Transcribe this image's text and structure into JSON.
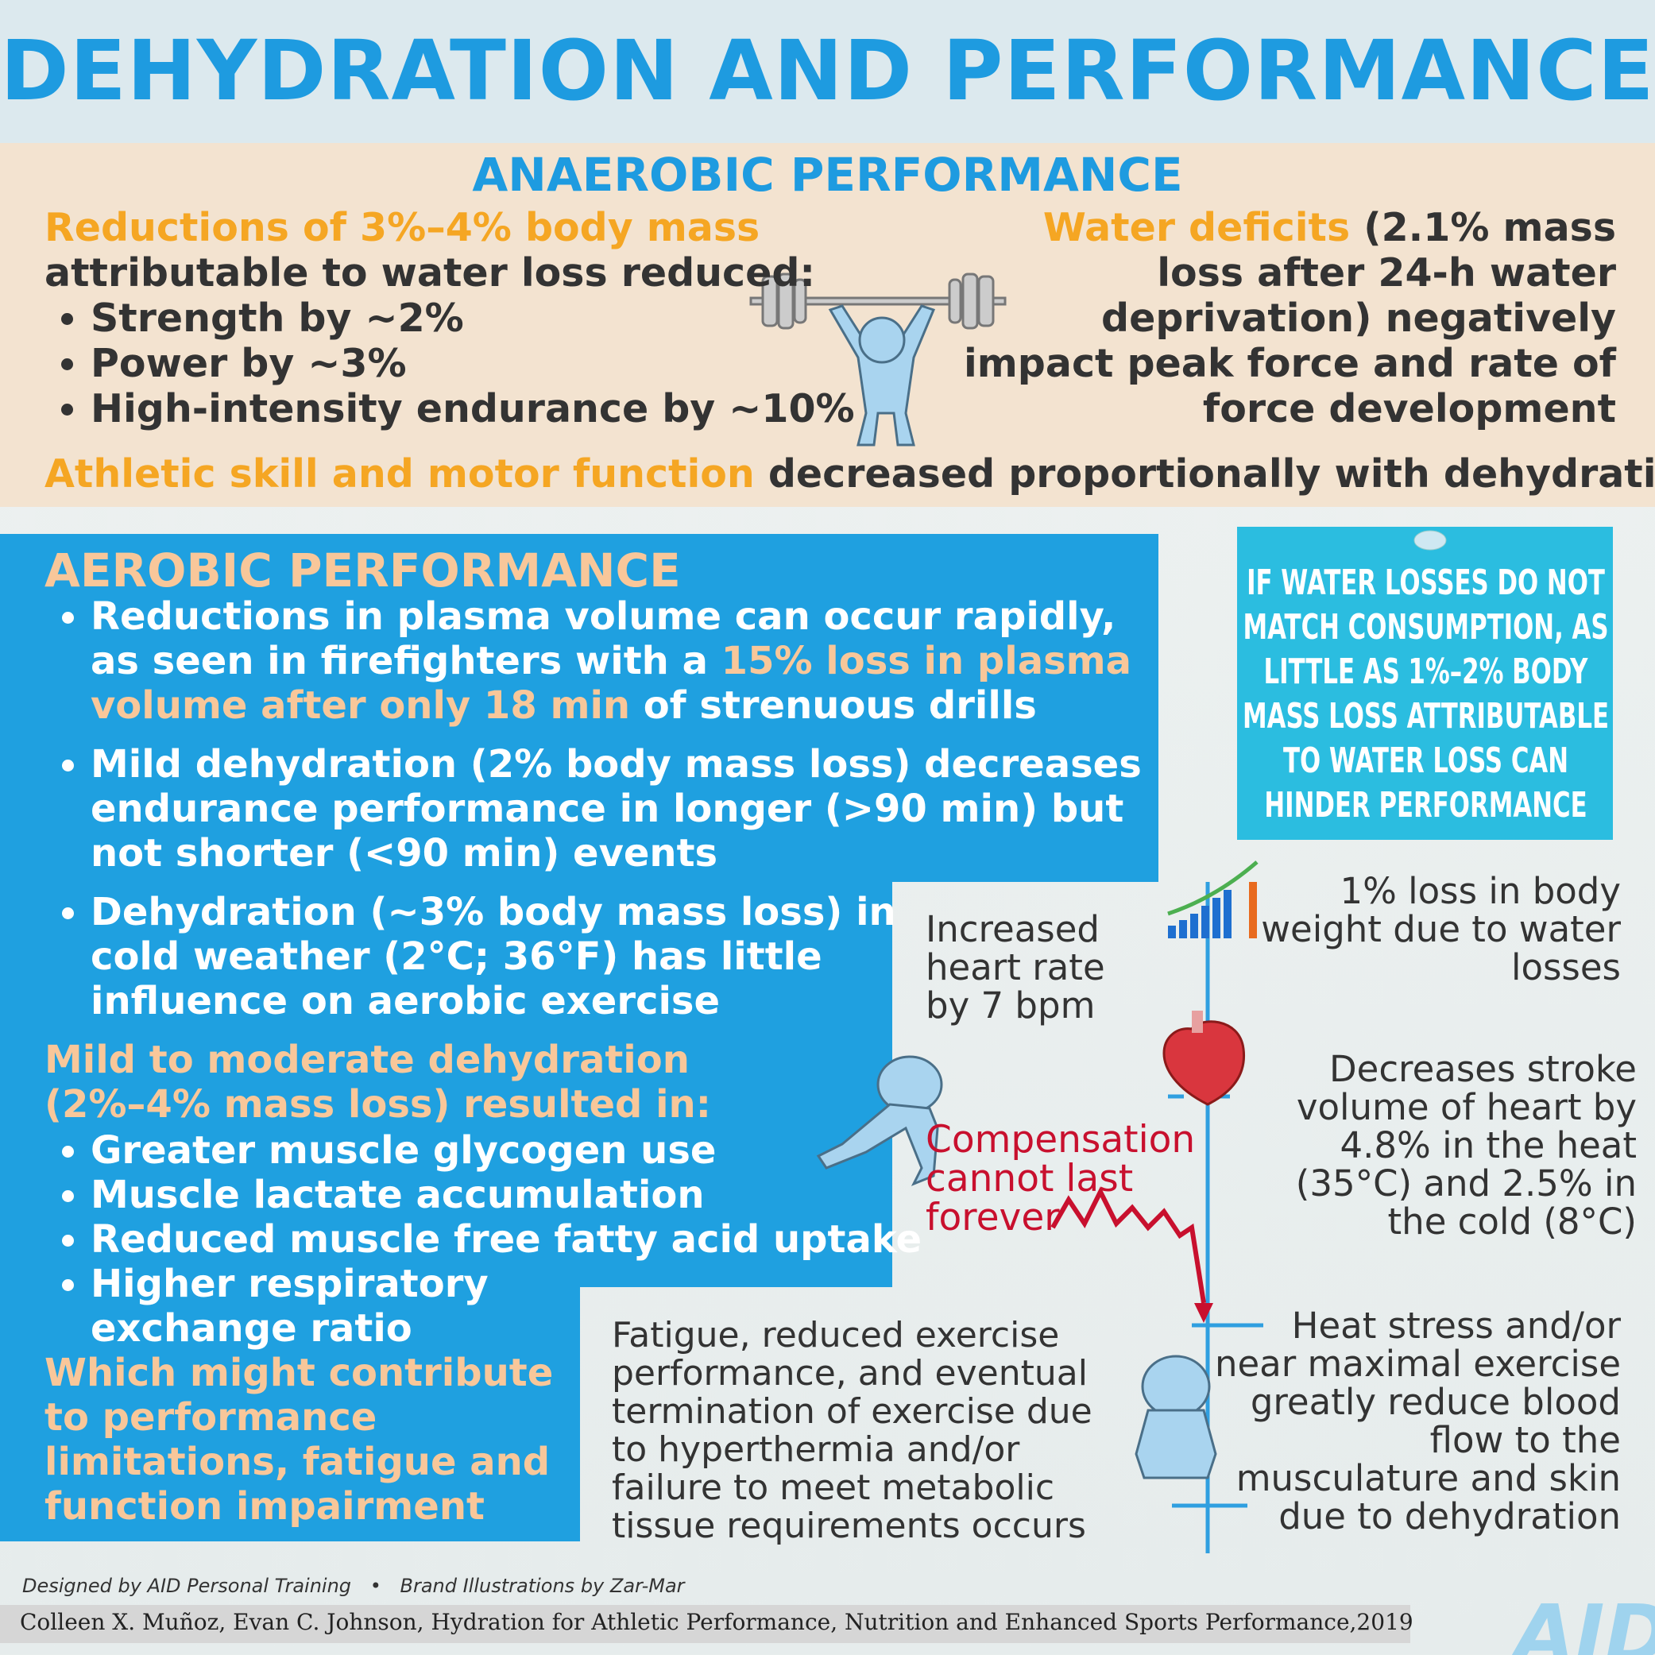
{
  "title": "DEHYDRATION AND PERFORMANCE",
  "anaerobic": {
    "heading": "ANAEROBIC PERFORMANCE",
    "intro_highlight": "Reductions of 3%–4% body mass",
    "intro_text": "attributable to water loss reduced:",
    "bullets": [
      "Strength by ~2%",
      "Power by ~3%",
      "High-intensity endurance by ~10%"
    ],
    "right_highlight": "Water deficits",
    "right_text": "(2.1% mass loss after 24-h water deprivation) negatively impact peak force and rate of force development",
    "skill_highlight": "Athletic skill and motor function",
    "skill_text": "decreased proportionally with dehydration"
  },
  "aerobic": {
    "heading": "AEROBIC PERFORMANCE",
    "bullet_0": {
      "before": "Reductions in plasma volume can occur rapidly, as seen in firefighters with a",
      "highlight": "15%  loss in plasma volume after only 18 min",
      "after": "of strenuous drills"
    },
    "bullets": [
      "Mild dehydration (2% body mass loss) decreases endurance performance in longer (>90 min) but not shorter (<90 min) events",
      "Dehydration (~3% body mass loss) in cold weather (2°C; 36°F) has little influence on aerobic exercise"
    ],
    "mild_heading": "Mild to moderate dehydration (2%–4% mass loss) resulted in:",
    "mild_bullets": [
      "Greater muscle glycogen use",
      "Muscle lactate accumulation",
      "Reduced muscle free fatty acid uptake",
      "Higher respiratory exchange ratio"
    ],
    "conclusion": "Which might contribute to performance limitations, fatigue and function impairment"
  },
  "note": "IF WATER LOSSES DO NOT MATCH CONSUMPTION, AS LITTLE AS 1%–2% BODY MASS LOSS ATTRIBUTABLE TO WATER LOSS CAN HINDER PERFORMANCE",
  "timeline": {
    "body_weight": "1% loss in body weight due to water losses",
    "heart_rate": "Increased heart rate by 7 bpm",
    "stroke_volume": "Decreases stroke volume of heart by 4.8% in the heat (35°C) and 2.5% in the cold (8°C)",
    "compensation": "Compensation cannot last forever",
    "blood_flow": "Heat stress and/or near maximal exercise greatly reduce blood flow to the musculature and skin due to dehydration",
    "fatigue": "Fatigue, reduced exercise performance, and eventual termination of exercise due to hyperthermia and/or failure to meet metabolic tissue requirements occurs"
  },
  "footer": {
    "designed": "Designed by AID Personal Training",
    "separator": "•",
    "illustrations": "Brand Illustrations by Zar-Mar",
    "citation": "Colleen X. Muñoz, Evan C. Johnson, Hydration for Athletic Performance, Nutrition and Enhanced Sports Performance,2019",
    "logo": "AID"
  }
}
